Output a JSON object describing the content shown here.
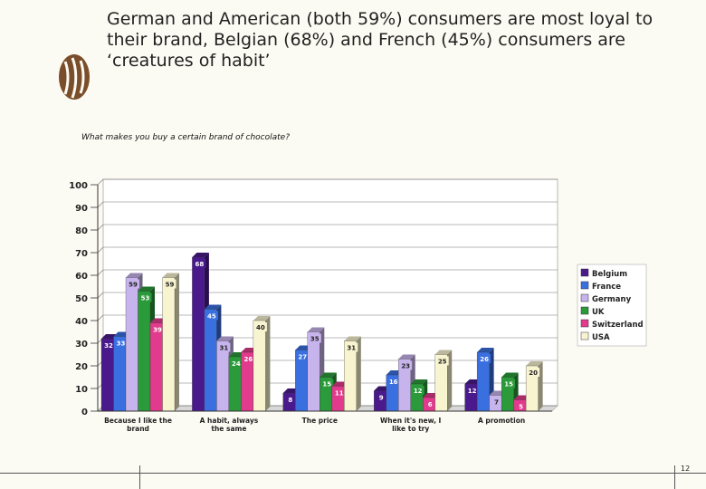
{
  "slide": {
    "title": "German and American (both 59%) consumers are most loyal to their brand, Belgian (68%) and French (45%) consumers are ‘creatures of habit’",
    "subtitle": "What makes you buy a certain brand of chocolate?",
    "page_number": "12"
  },
  "chart_data": {
    "type": "bar",
    "title": "",
    "xlabel": "",
    "ylabel": "",
    "ylim": [
      0,
      100
    ],
    "yticks": [
      0,
      10,
      20,
      30,
      40,
      50,
      60,
      70,
      80,
      90,
      100
    ],
    "grid": true,
    "legend": "right",
    "categories": [
      "Because I like the brand",
      "A habit, always the same",
      "The price",
      "When it's new, I like to try",
      "A promotion"
    ],
    "series": [
      {
        "name": "Belgium",
        "color": "#4a1a8c",
        "values": [
          32,
          68,
          8,
          9,
          12
        ]
      },
      {
        "name": "France",
        "color": "#3a6fe0",
        "values": [
          33,
          45,
          27,
          16,
          26
        ]
      },
      {
        "name": "Germany",
        "color": "#c8b4ec",
        "values": [
          59,
          31,
          35,
          23,
          7
        ]
      },
      {
        "name": "UK",
        "color": "#2a9a3a",
        "values": [
          53,
          24,
          15,
          12,
          15
        ]
      },
      {
        "name": "Switzerland",
        "color": "#e23a8c",
        "values": [
          39,
          26,
          11,
          6,
          5
        ]
      },
      {
        "name": "USA",
        "color": "#f9f4d0",
        "values": [
          59,
          40,
          31,
          25,
          20
        ]
      }
    ]
  }
}
